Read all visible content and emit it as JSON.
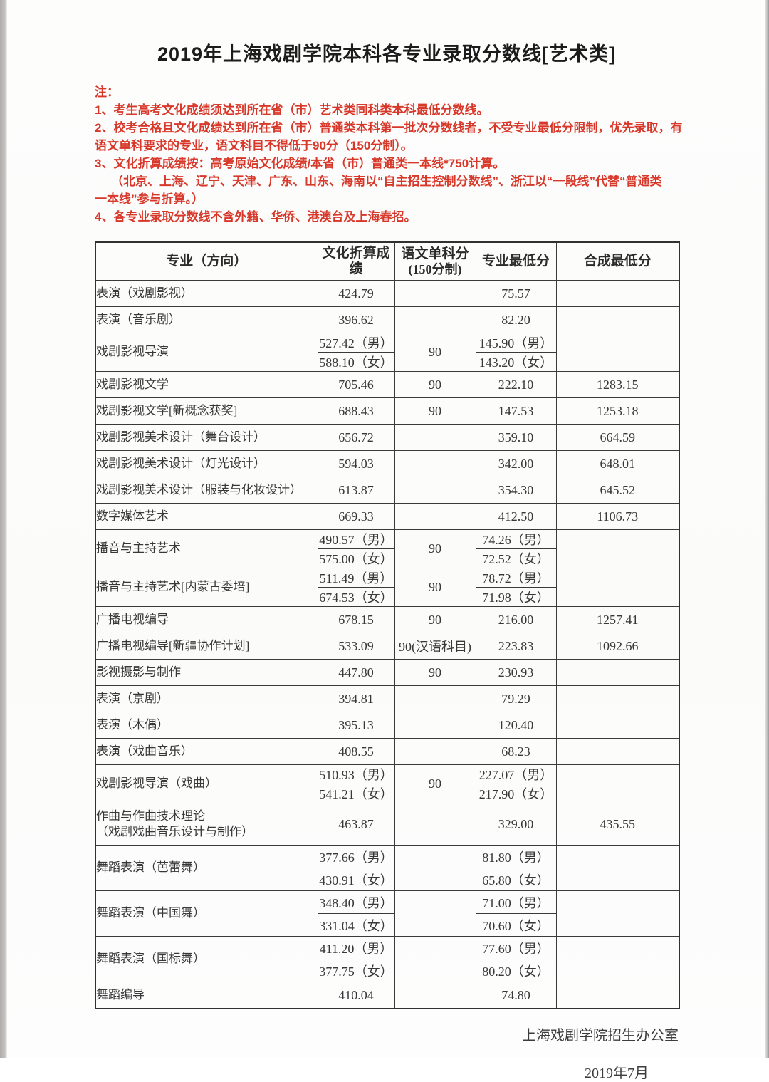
{
  "colors": {
    "note_red": "#d8382a",
    "ink": "#333333"
  },
  "page": {
    "title": "2019年上海戏剧学院本科各专业录取分数线[艺术类]",
    "notes_label": "注：",
    "notes": [
      {
        "text": "1、考生高考文化成绩须达到所在省（市）艺术类同科类本科最低分数线。",
        "indent": false
      },
      {
        "text": "2、校考合格且文化成绩达到所在省（市）普通类本科第一批次分数线者，不受专业最低分限制，优先录取，有",
        "indent": false
      },
      {
        "text": "语文单科要求的专业，语文科目不得低于90分（150分制）。",
        "indent": false
      },
      {
        "text": "3、文化折算成绩按：高考原始文化成绩/本省（市）普通类一本线*750计算。",
        "indent": false
      },
      {
        "text": "（北京、上海、辽宁、天津、广东、山东、海南以“自主招生控制分数线”、浙江以“一段线”代替“普通类",
        "indent": true
      },
      {
        "text": "一本线”参与折算。）",
        "indent": false
      },
      {
        "text": "4、各专业录取分数线不含外籍、华侨、港澳台及上海春招。",
        "indent": false
      }
    ],
    "footer": {
      "org": "上海戏剧学院招生办公室",
      "date": "2019年7月"
    }
  },
  "table": {
    "headers": [
      "专业（方向）",
      "文化折算成绩",
      "语文单科分",
      "专业最低分",
      "合成最低分"
    ],
    "chinese_header_sub": "(150分制)",
    "rows": [
      {
        "type": "simple",
        "major": "表演（戏剧影视）",
        "culture": "424.79",
        "chinese": "",
        "major_min": "75.57",
        "composite": ""
      },
      {
        "type": "simple",
        "major": "表演（音乐剧）",
        "culture": "396.62",
        "chinese": "",
        "major_min": "82.20",
        "composite": ""
      },
      {
        "type": "split",
        "major": "戏剧影视导演",
        "culture_m": "527.42（男）",
        "culture_f": "588.10（女）",
        "chinese": "90",
        "major_min_m": "145.90（男）",
        "major_min_f": "143.20（女）",
        "composite": "",
        "tall": false
      },
      {
        "type": "simple",
        "major": "戏剧影视文学",
        "culture": "705.46",
        "chinese": "90",
        "major_min": "222.10",
        "composite": "1283.15"
      },
      {
        "type": "simple",
        "major": "戏剧影视文学[新概念获奖]",
        "culture": "688.43",
        "chinese": "90",
        "major_min": "147.53",
        "composite": "1253.18"
      },
      {
        "type": "simple",
        "major": "戏剧影视美术设计（舞台设计）",
        "culture": "656.72",
        "chinese": "",
        "major_min": "359.10",
        "composite": "664.59"
      },
      {
        "type": "simple",
        "major": "戏剧影视美术设计（灯光设计）",
        "culture": "594.03",
        "chinese": "",
        "major_min": "342.00",
        "composite": "648.01"
      },
      {
        "type": "simple",
        "major": "戏剧影视美术设计（服装与化妆设计）",
        "culture": "613.87",
        "chinese": "",
        "major_min": "354.30",
        "composite": "645.52"
      },
      {
        "type": "simple",
        "major": "数字媒体艺术",
        "culture": "669.33",
        "chinese": "",
        "major_min": "412.50",
        "composite": "1106.73"
      },
      {
        "type": "split",
        "major": "播音与主持艺术",
        "culture_m": "490.57（男）",
        "culture_f": "575.00（女）",
        "chinese": "90",
        "major_min_m": "74.26（男）",
        "major_min_f": "72.52（女）",
        "composite": "",
        "tall": false
      },
      {
        "type": "split",
        "major": "播音与主持艺术[内蒙古委培]",
        "culture_m": "511.49（男）",
        "culture_f": "674.53（女）",
        "chinese": "90",
        "major_min_m": "78.72（男）",
        "major_min_f": "71.98（女）",
        "composite": "",
        "tall": false
      },
      {
        "type": "simple",
        "major": "广播电视编导",
        "culture": "678.15",
        "chinese": "90",
        "major_min": "216.00",
        "composite": "1257.41"
      },
      {
        "type": "simple",
        "major": "广播电视编导[新疆协作计划]",
        "culture": "533.09",
        "chinese": "90(汉语科目)",
        "major_min": "223.83",
        "composite": "1092.66"
      },
      {
        "type": "simple",
        "major": "影视摄影与制作",
        "culture": "447.80",
        "chinese": "90",
        "major_min": "230.93",
        "composite": ""
      },
      {
        "type": "simple",
        "major": "表演（京剧）",
        "culture": "394.81",
        "chinese": "",
        "major_min": "79.29",
        "composite": ""
      },
      {
        "type": "simple",
        "major": "表演（木偶）",
        "culture": "395.13",
        "chinese": "",
        "major_min": "120.40",
        "composite": ""
      },
      {
        "type": "simple",
        "major": "表演（戏曲音乐）",
        "culture": "408.55",
        "chinese": "",
        "major_min": "68.23",
        "composite": ""
      },
      {
        "type": "split",
        "major": "戏剧影视导演（戏曲）",
        "culture_m": "510.93（男）",
        "culture_f": "541.21（女）",
        "chinese": "90",
        "major_min_m": "227.07（男）",
        "major_min_f": "217.90（女）",
        "composite": "",
        "tall": false
      },
      {
        "type": "double",
        "major": "作曲与作曲技术理论",
        "major2": "（戏剧戏曲音乐设计与制作）",
        "culture": "463.87",
        "chinese": "",
        "major_min": "329.00",
        "composite": "435.55"
      },
      {
        "type": "split",
        "major": "舞蹈表演（芭蕾舞）",
        "culture_m": "377.66（男）",
        "culture_f": "430.91（女）",
        "chinese": "",
        "major_min_m": "81.80（男）",
        "major_min_f": "65.80（女）",
        "composite": "",
        "tall": true
      },
      {
        "type": "split",
        "major": "舞蹈表演（中国舞）",
        "culture_m": "348.40（男）",
        "culture_f": "331.04（女）",
        "chinese": "",
        "major_min_m": "71.00（男）",
        "major_min_f": "70.60（女）",
        "composite": "",
        "tall": true
      },
      {
        "type": "split",
        "major": "舞蹈表演（国标舞）",
        "culture_m": "411.20（男）",
        "culture_f": "377.75（女）",
        "chinese": "",
        "major_min_m": "77.60（男）",
        "major_min_f": "80.20（女）",
        "composite": "",
        "tall": true
      },
      {
        "type": "simple",
        "major": "舞蹈编导",
        "culture": "410.04",
        "chinese": "",
        "major_min": "74.80",
        "composite": ""
      }
    ]
  }
}
